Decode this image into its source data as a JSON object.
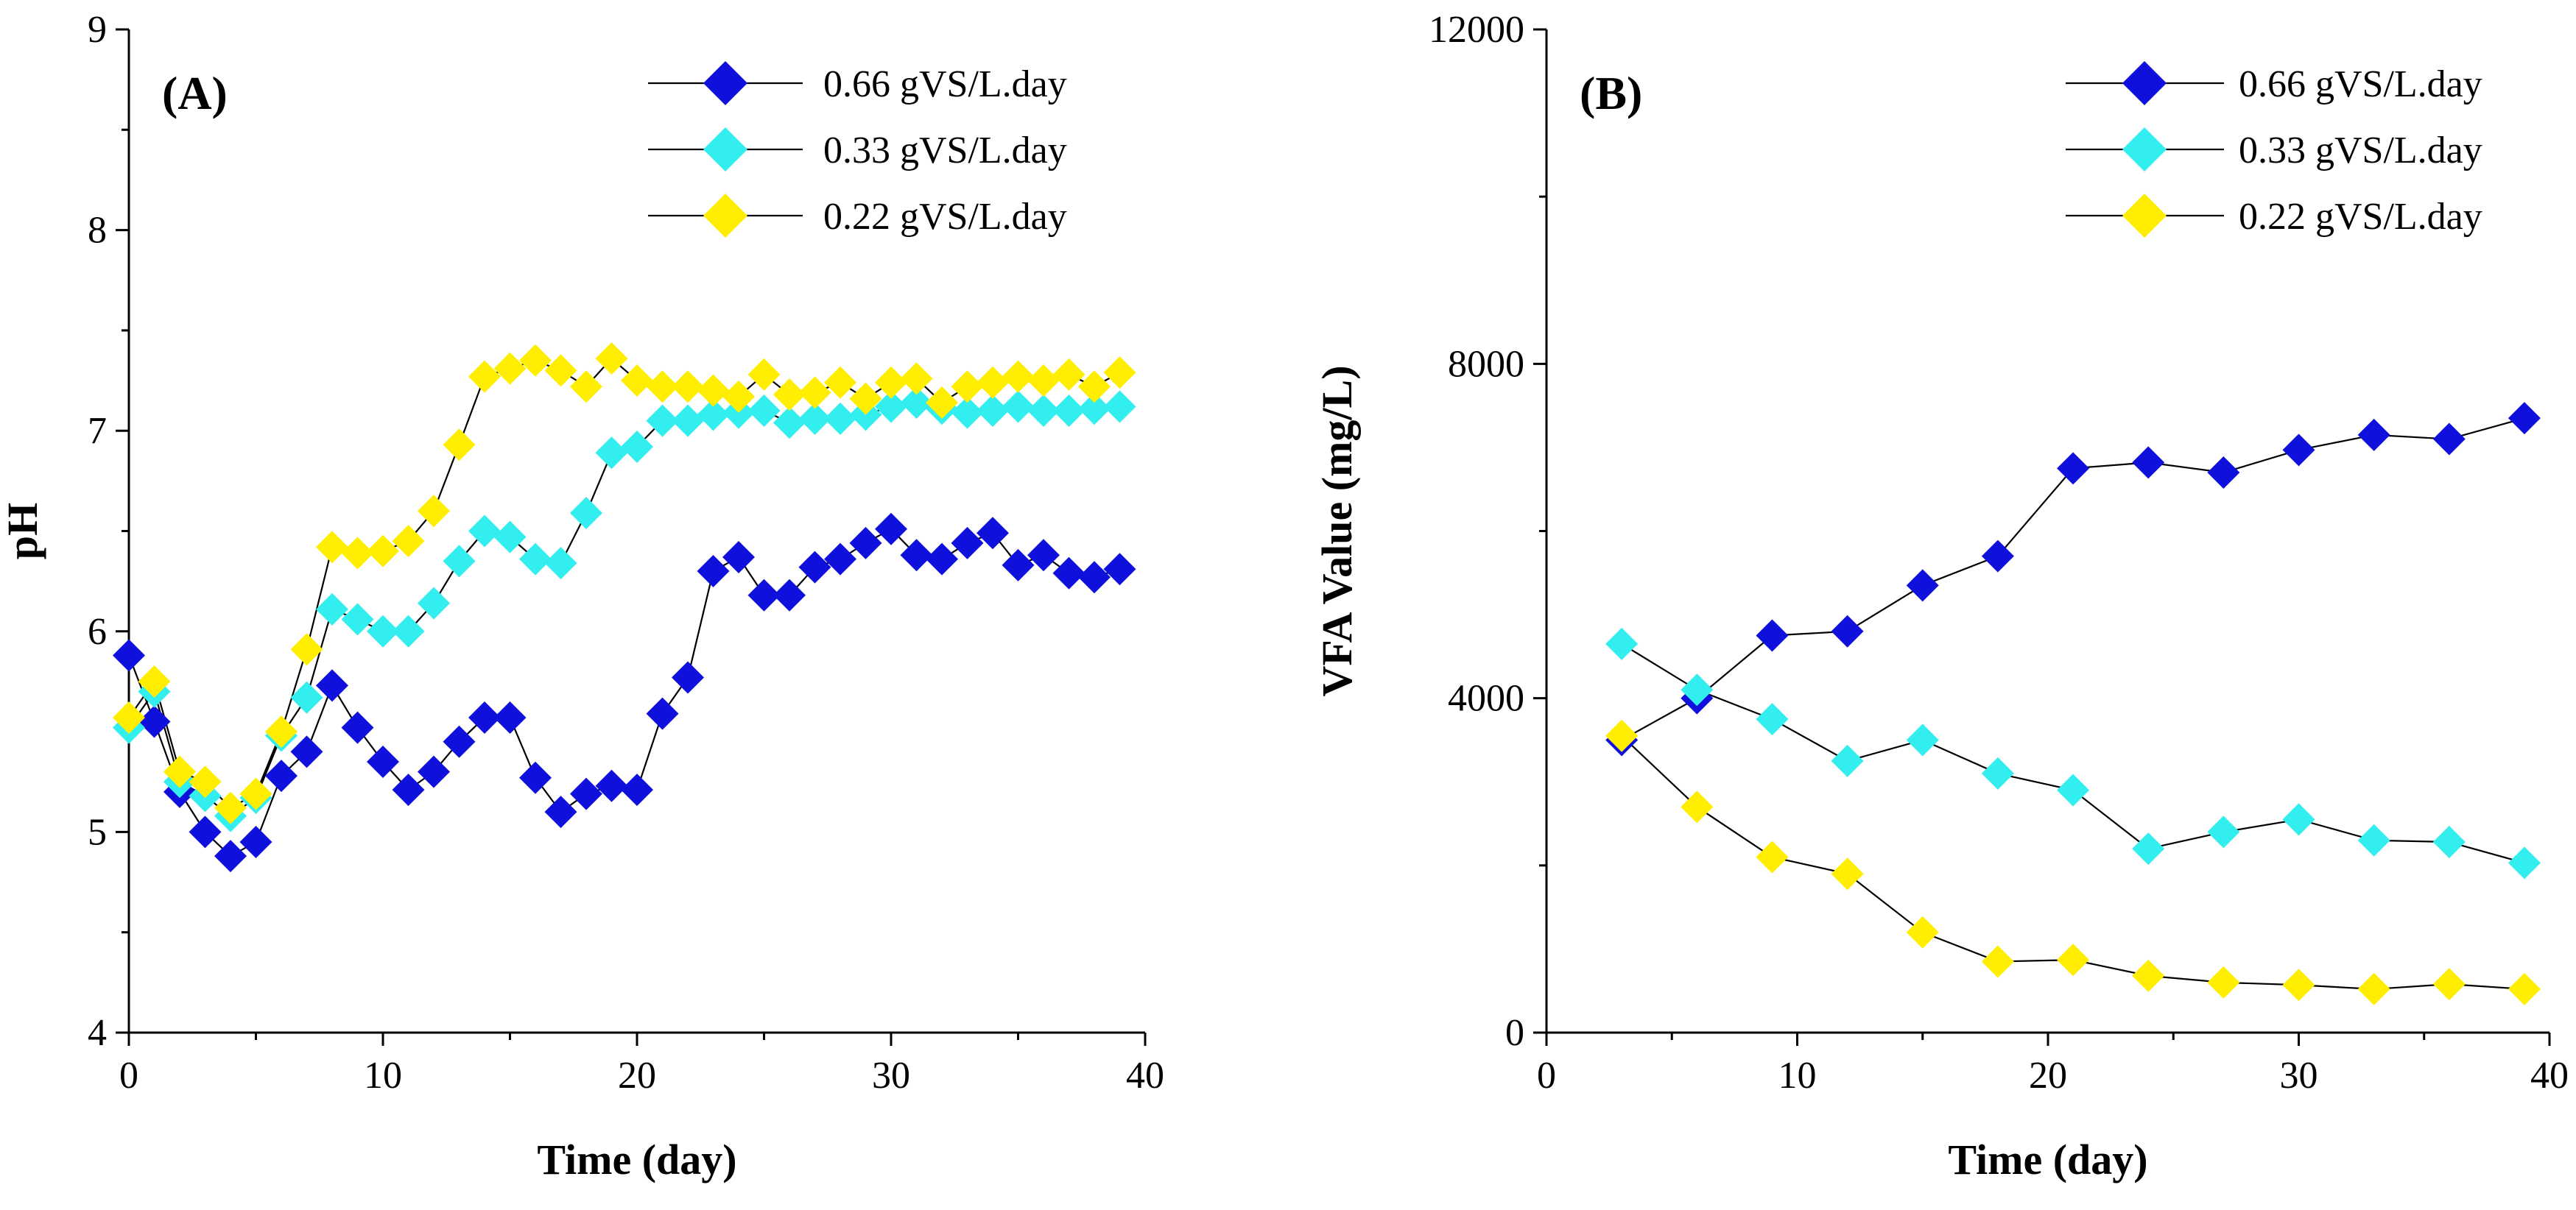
{
  "chart_data": [
    {
      "type": "line",
      "panel_label": "(A)",
      "xlabel": "Time (day)",
      "ylabel": "pH",
      "xlim": [
        0,
        40
      ],
      "ylim": [
        4,
        9
      ],
      "x_ticks": [
        "0",
        "10",
        "20",
        "30",
        "40"
      ],
      "y_ticks": [
        "4",
        "5",
        "6",
        "7",
        "8",
        "9"
      ],
      "x_tick_values": [
        0,
        10,
        20,
        30,
        40
      ],
      "y_tick_values": [
        4,
        5,
        6,
        7,
        8,
        9
      ],
      "legend_position": "top-right",
      "series": [
        {
          "name": "0.66 gVS/L.day",
          "color": "#1010dd",
          "x": [
            0,
            1,
            2,
            3,
            4,
            5,
            6,
            7,
            8,
            9,
            10,
            11,
            12,
            13,
            14,
            15,
            16,
            17,
            18,
            19,
            20,
            21,
            22,
            23,
            24,
            25,
            26,
            27,
            28,
            29,
            30,
            31,
            32,
            33,
            34,
            35,
            36,
            37,
            38,
            39
          ],
          "y": [
            5.88,
            5.55,
            5.2,
            5.0,
            4.88,
            4.95,
            5.28,
            5.4,
            5.73,
            5.52,
            5.35,
            5.21,
            5.3,
            5.45,
            5.57,
            5.57,
            5.27,
            5.1,
            5.19,
            5.23,
            5.21,
            5.59,
            5.77,
            6.3,
            6.37,
            6.18,
            6.18,
            6.32,
            6.36,
            6.44,
            6.51,
            6.38,
            6.36,
            6.44,
            6.49,
            6.33,
            6.38,
            6.29,
            6.27,
            6.31
          ]
        },
        {
          "name": "0.33 gVS/L.day",
          "color": "#33eeee",
          "x": [
            0,
            1,
            2,
            3,
            4,
            5,
            6,
            7,
            8,
            9,
            10,
            11,
            12,
            13,
            14,
            15,
            16,
            17,
            18,
            19,
            20,
            21,
            22,
            23,
            24,
            25,
            26,
            27,
            28,
            29,
            30,
            31,
            32,
            33,
            34,
            35,
            36,
            37,
            38,
            39
          ],
          "y": [
            5.52,
            5.7,
            5.25,
            5.18,
            5.08,
            5.17,
            5.48,
            5.67,
            6.11,
            6.06,
            6.0,
            6.0,
            6.14,
            6.35,
            6.5,
            6.47,
            6.36,
            6.34,
            6.59,
            6.89,
            6.92,
            7.05,
            7.05,
            7.08,
            7.09,
            7.1,
            7.04,
            7.06,
            7.06,
            7.08,
            7.12,
            7.14,
            7.11,
            7.09,
            7.1,
            7.12,
            7.1,
            7.1,
            7.11,
            7.12
          ]
        },
        {
          "name": "0.22 gVS/L.day",
          "color": "#ffee00",
          "x": [
            0,
            1,
            2,
            3,
            4,
            5,
            6,
            7,
            8,
            9,
            10,
            11,
            12,
            13,
            14,
            15,
            16,
            17,
            18,
            19,
            20,
            21,
            22,
            23,
            24,
            25,
            26,
            27,
            28,
            29,
            30,
            31,
            32,
            33,
            34,
            35,
            36,
            37,
            38,
            39
          ],
          "y": [
            5.57,
            5.75,
            5.3,
            5.25,
            5.12,
            5.19,
            5.5,
            5.91,
            6.42,
            6.39,
            6.4,
            6.45,
            6.6,
            6.93,
            7.27,
            7.31,
            7.35,
            7.3,
            7.22,
            7.36,
            7.25,
            7.22,
            7.22,
            7.2,
            7.17,
            7.28,
            7.18,
            7.19,
            7.24,
            7.16,
            7.24,
            7.26,
            7.14,
            7.22,
            7.24,
            7.27,
            7.25,
            7.28,
            7.22,
            7.29
          ]
        }
      ]
    },
    {
      "type": "line",
      "panel_label": "(B)",
      "xlabel": "Time (day)",
      "ylabel": "VFA Value (mg/L)",
      "xlim": [
        0,
        40
      ],
      "ylim": [
        0,
        12000
      ],
      "x_ticks": [
        "0",
        "10",
        "20",
        "30",
        "40"
      ],
      "y_ticks": [
        "0",
        "4000",
        "8000",
        "12000"
      ],
      "x_tick_values": [
        0,
        10,
        20,
        30,
        40
      ],
      "y_tick_values": [
        0,
        4000,
        8000,
        12000
      ],
      "legend_position": "top-right",
      "series": [
        {
          "name": "0.66 gVS/L.day",
          "color": "#1010dd",
          "x": [
            3,
            6,
            9,
            12,
            15,
            18,
            21,
            24,
            27,
            30,
            33,
            36,
            39
          ],
          "y": [
            3500,
            4000,
            4750,
            4800,
            5350,
            5700,
            6750,
            6820,
            6700,
            6970,
            7150,
            7100,
            7350
          ]
        },
        {
          "name": "0.33 gVS/L.day",
          "color": "#33eeee",
          "x": [
            3,
            6,
            9,
            12,
            15,
            18,
            21,
            24,
            27,
            30,
            33,
            36,
            39
          ],
          "y": [
            4650,
            4100,
            3750,
            3250,
            3500,
            3100,
            2900,
            2200,
            2400,
            2550,
            2300,
            2280,
            2030
          ]
        },
        {
          "name": "0.22 gVS/L.day",
          "color": "#ffee00",
          "x": [
            3,
            6,
            9,
            12,
            15,
            18,
            21,
            24,
            27,
            30,
            33,
            36,
            39
          ],
          "y": [
            3550,
            2700,
            2100,
            1900,
            1200,
            850,
            870,
            680,
            600,
            570,
            520,
            580,
            520
          ]
        }
      ]
    }
  ]
}
